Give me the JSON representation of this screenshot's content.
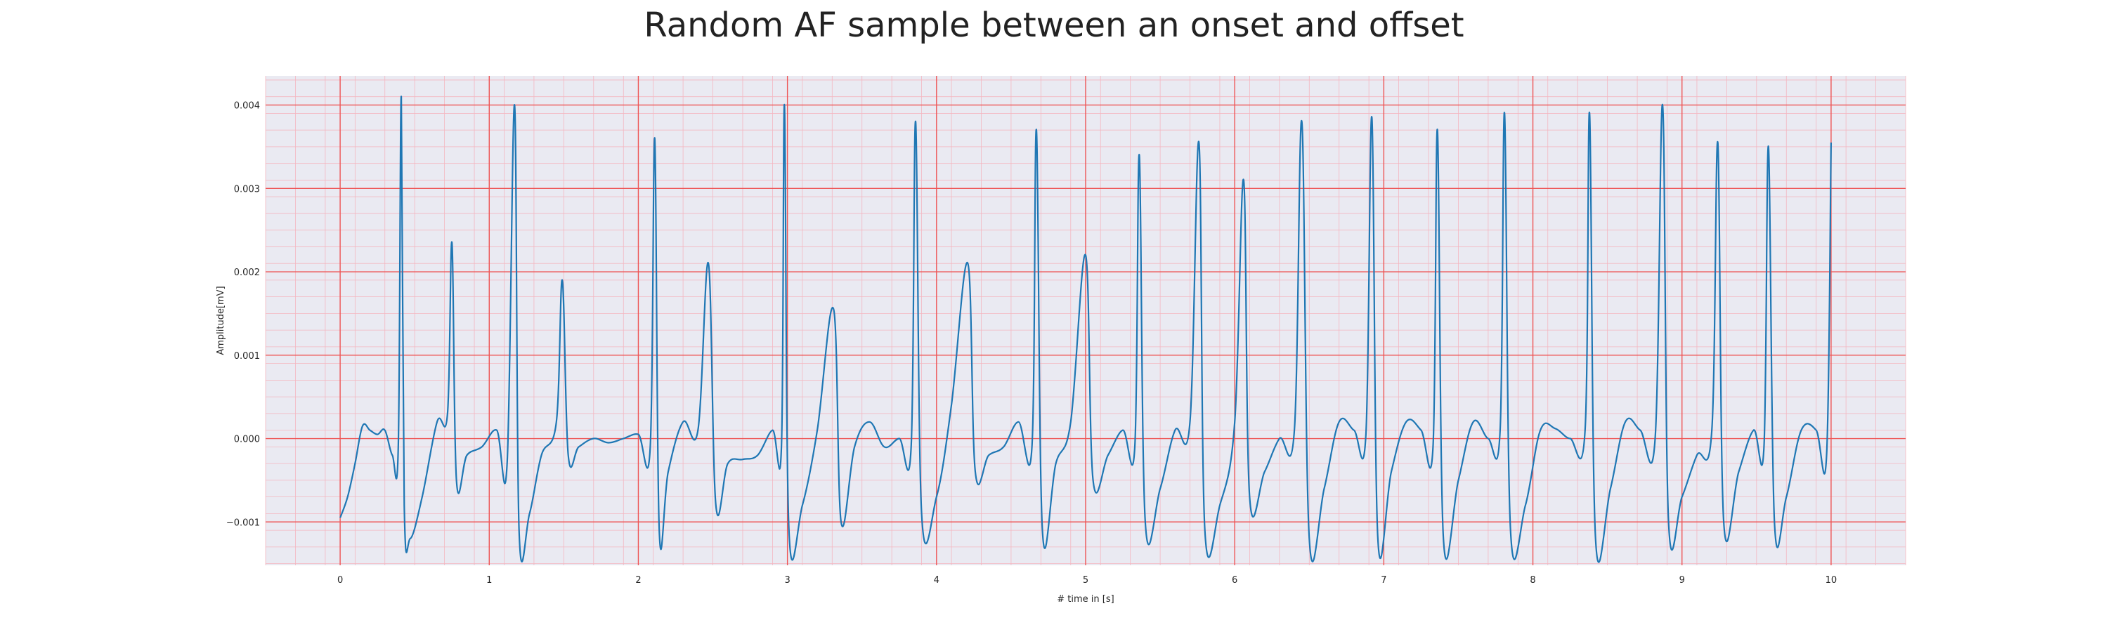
{
  "chart_data": {
    "type": "line",
    "title": "Random AF sample between an onset and offset",
    "xlabel": "# time in [s]",
    "ylabel": "Amplitude[mV]",
    "xlim": [
      -0.5,
      10.5
    ],
    "ylim": [
      -0.00152,
      0.00435
    ],
    "x_ticks": [
      "0",
      "1",
      "2",
      "3",
      "4",
      "5",
      "6",
      "7",
      "8",
      "9",
      "10"
    ],
    "y_ticks": [
      "0.004",
      "0.003",
      "0.002",
      "0.001",
      "0.000",
      "−0.001"
    ],
    "grid": true,
    "colors": {
      "background": "#eaeaf2",
      "major_grid": "#ee5555",
      "minor_grid": "#f4b6c0",
      "line": "#1f77b4"
    },
    "beats": [
      {
        "t": 0.41,
        "amp": 0.0041
      },
      {
        "t": 0.75,
        "amp": 0.00235
      },
      {
        "t": 1.17,
        "amp": 0.004
      },
      {
        "t": 1.49,
        "amp": 0.0019
      },
      {
        "t": 2.11,
        "amp": 0.0036
      },
      {
        "t": 2.47,
        "amp": 0.0021
      },
      {
        "t": 2.98,
        "amp": 0.004
      },
      {
        "t": 3.31,
        "amp": 0.00155
      },
      {
        "t": 3.86,
        "amp": 0.0038
      },
      {
        "t": 4.21,
        "amp": 0.0021
      },
      {
        "t": 4.67,
        "amp": 0.0037
      },
      {
        "t": 5.0,
        "amp": 0.0022
      },
      {
        "t": 5.36,
        "amp": 0.0034
      },
      {
        "t": 5.76,
        "amp": 0.00355
      },
      {
        "t": 6.06,
        "amp": 0.0031
      },
      {
        "t": 6.45,
        "amp": 0.0038
      },
      {
        "t": 6.92,
        "amp": 0.00385
      },
      {
        "t": 7.36,
        "amp": 0.0037
      },
      {
        "t": 7.81,
        "amp": 0.0039
      },
      {
        "t": 8.38,
        "amp": 0.0039
      },
      {
        "t": 8.87,
        "amp": 0.004
      },
      {
        "t": 9.24,
        "amp": 0.00355
      },
      {
        "t": 9.58,
        "amp": 0.0035
      },
      {
        "t": 10.0,
        "amp": 0.00355
      }
    ],
    "series": [
      {
        "color": "#1f77b4",
        "x": [
          0.0,
          0.05,
          0.1,
          0.15,
          0.2,
          0.25,
          0.3,
          0.35,
          0.39,
          0.41,
          0.43,
          0.47,
          0.55,
          0.65,
          0.72,
          0.75,
          0.78,
          0.85,
          0.95,
          1.05,
          1.12,
          1.17,
          1.2,
          1.27,
          1.35,
          1.45,
          1.49,
          1.53,
          1.6,
          1.7,
          1.8,
          1.9,
          2.0,
          2.08,
          2.11,
          2.14,
          2.2,
          2.3,
          2.4,
          2.47,
          2.52,
          2.6,
          2.7,
          2.8,
          2.9,
          2.96,
          2.98,
          3.01,
          3.1,
          3.2,
          3.31,
          3.36,
          3.45,
          3.55,
          3.65,
          3.75,
          3.83,
          3.86,
          3.9,
          4.0,
          4.1,
          4.21,
          4.26,
          4.35,
          4.45,
          4.55,
          4.64,
          4.67,
          4.71,
          4.8,
          4.9,
          5.0,
          5.05,
          5.15,
          5.25,
          5.33,
          5.36,
          5.4,
          5.5,
          5.6,
          5.7,
          5.76,
          5.8,
          5.9,
          6.0,
          6.06,
          6.1,
          6.2,
          6.3,
          6.4,
          6.45,
          6.5,
          6.6,
          6.7,
          6.8,
          6.88,
          6.92,
          6.96,
          7.05,
          7.15,
          7.25,
          7.33,
          7.36,
          7.4,
          7.5,
          7.6,
          7.7,
          7.78,
          7.81,
          7.85,
          7.95,
          8.05,
          8.15,
          8.25,
          8.35,
          8.38,
          8.42,
          8.52,
          8.62,
          8.72,
          8.82,
          8.87,
          8.91,
          9.0,
          9.1,
          9.2,
          9.24,
          9.28,
          9.38,
          9.48,
          9.55,
          9.58,
          9.62,
          9.7,
          9.8,
          9.9,
          9.97,
          10.0
        ],
        "y": [
          -0.00095,
          -0.0007,
          -0.0003,
          0.00015,
          0.0001,
          5e-05,
          0.0001,
          -0.0002,
          -0.0001,
          0.0041,
          -0.0008,
          -0.0012,
          -0.0007,
          0.0002,
          0.0003,
          0.00235,
          -0.0005,
          -0.0002,
          -0.0001,
          0.0001,
          -0.0003,
          0.004,
          -0.0011,
          -0.0009,
          -0.0002,
          0.0002,
          0.0019,
          -0.0002,
          -0.0001,
          0.0,
          -5e-05,
          0.0,
          5e-05,
          -0.0001,
          0.0036,
          -0.0011,
          -0.0004,
          0.0002,
          0.0001,
          0.0021,
          -0.0008,
          -0.0003,
          -0.00025,
          -0.0002,
          0.0001,
          -0.0001,
          0.004,
          -0.0011,
          -0.0008,
          0.0001,
          0.00155,
          -0.001,
          -0.0001,
          0.0002,
          -0.0001,
          0.0,
          -0.0001,
          0.0038,
          -0.0009,
          -0.0007,
          0.0004,
          0.0021,
          -0.0004,
          -0.0002,
          -0.0001,
          0.0002,
          -0.0001,
          0.0037,
          -0.0011,
          -0.0003,
          0.0002,
          0.0022,
          -0.0005,
          -0.0002,
          0.0001,
          -0.0001,
          0.0034,
          -0.001,
          -0.0006,
          0.0001,
          0.0002,
          0.00355,
          -0.0011,
          -0.0008,
          0.0002,
          0.0031,
          -0.0007,
          -0.0004,
          0.0,
          0.0001,
          0.0038,
          -0.0012,
          -0.0006,
          0.0002,
          0.0001,
          5e-05,
          0.00385,
          -0.0012,
          -0.0004,
          0.0002,
          0.0001,
          -0.0001,
          0.0037,
          -0.0012,
          -0.0005,
          0.0002,
          0.0,
          0.0001,
          0.0039,
          -0.0011,
          -0.0008,
          0.0001,
          0.00012,
          0.0,
          0.0001,
          0.0039,
          -0.0012,
          -0.0006,
          0.0002,
          0.0001,
          0.0,
          0.004,
          -0.001,
          -0.0007,
          -0.0002,
          0.0001,
          0.00355,
          -0.001,
          -0.0004,
          0.0001,
          -0.0001,
          0.0035,
          -0.001,
          -0.0007,
          0.0001,
          0.0001,
          -0.0002,
          0.00355
        ]
      }
    ]
  }
}
